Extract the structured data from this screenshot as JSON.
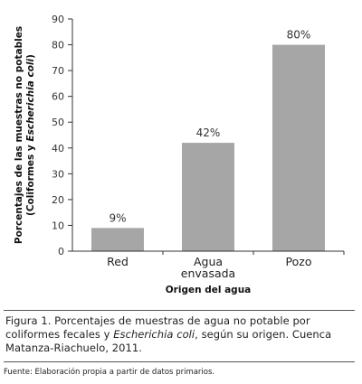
{
  "chart_data": {
    "type": "bar",
    "categories": [
      "Red",
      "Agua envasada",
      "Pozo"
    ],
    "category_lines": [
      [
        "Red"
      ],
      [
        "Agua",
        "envasada"
      ],
      [
        "Pozo"
      ]
    ],
    "values": [
      9,
      42,
      80
    ],
    "value_labels": [
      "9%",
      "42%",
      "80%"
    ],
    "ylim": [
      0,
      90
    ],
    "yticks": [
      0,
      10,
      20,
      30,
      40,
      50,
      60,
      70,
      80,
      90
    ],
    "xlabel": "Origen del agua",
    "ylabel_lines": [
      [
        {
          "text": "Porcentajes de las muestras no potables",
          "italic": false
        }
      ],
      [
        {
          "text": "(Coliformes y ",
          "italic": false
        },
        {
          "text": "Escherichia coli",
          "italic": true
        },
        {
          "text": ")",
          "italic": false
        }
      ]
    ],
    "bar_color": "#a6a6a6",
    "grid": false
  },
  "caption": {
    "line1": "Figura 1. Porcentajes de muestras de agua no potable por",
    "line2_before": "coliformes fecales y ",
    "line2_italic": "Escherichia coli",
    "line2_after": ", según su origen. Cuenca",
    "line3": "Matanza-Riachuelo, 2011."
  },
  "source": "Fuente: Elaboración propia a partir de datos primarios."
}
